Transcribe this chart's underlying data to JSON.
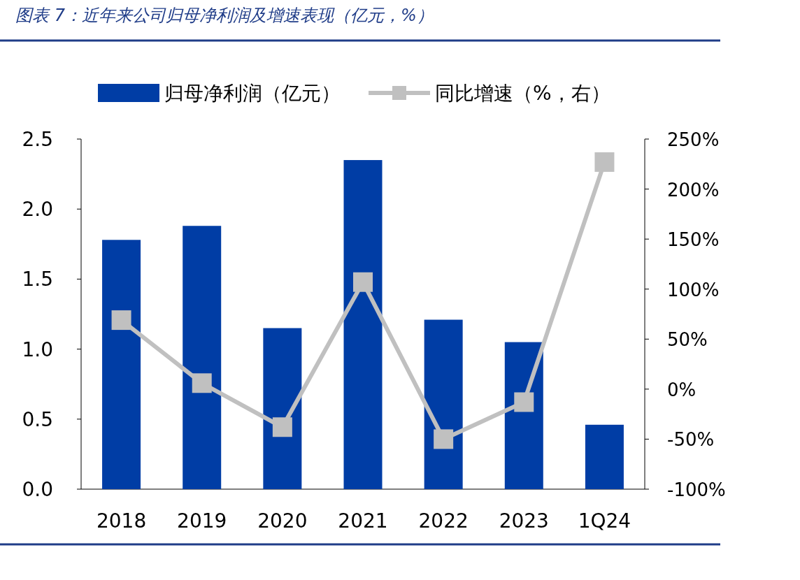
{
  "chart_data": {
    "type": "bar",
    "title": "图表 7：近年来公司归母净利润及增速表现（亿元，%）",
    "categories": [
      "2018",
      "2019",
      "2020",
      "2021",
      "2022",
      "2023",
      "1Q24"
    ],
    "series": [
      {
        "name": "归母净利润（亿元）",
        "color": "#003da5",
        "values": [
          1.78,
          1.88,
          1.15,
          2.35,
          1.21,
          1.05,
          0.46
        ]
      },
      {
        "name": "同比增速（%，右）",
        "type": "line",
        "axis": "y2",
        "color": "#c0c0c0",
        "values": [
          69,
          6,
          -38,
          107,
          -50,
          -13,
          227
        ]
      }
    ],
    "ylim": [
      0,
      2.5
    ],
    "yticks": [
      {
        "value": 0,
        "label": "0.0"
      },
      0.5,
      {
        "value": 1,
        "label": "1.0"
      },
      1.5,
      {
        "value": 2,
        "label": "2.0"
      },
      2.5
    ],
    "y2lim": [
      -100,
      250
    ],
    "y2ticks": [
      {
        "value": -100,
        "label": "-100%"
      },
      {
        "value": -50,
        "label": "-50%"
      },
      {
        "value": 0,
        "label": "0%"
      },
      {
        "value": 50,
        "label": "50%"
      },
      {
        "value": 100,
        "label": "100%"
      },
      {
        "value": 150,
        "label": "150%"
      },
      {
        "value": 200,
        "label": "200%"
      },
      {
        "value": 250,
        "label": "250%"
      }
    ],
    "marker": "square",
    "legend": "top",
    "grid": false
  }
}
